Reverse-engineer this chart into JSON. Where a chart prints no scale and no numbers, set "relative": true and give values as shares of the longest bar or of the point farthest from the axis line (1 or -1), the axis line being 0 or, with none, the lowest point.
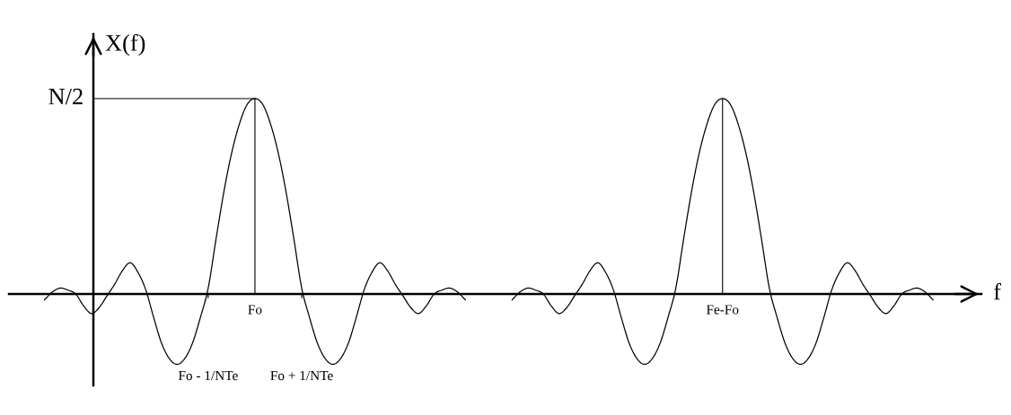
{
  "chart_data": {
    "type": "line",
    "relative": true,
    "xlabel": "f",
    "ylabel": "X(f)",
    "annotations": [
      "N/2"
    ],
    "categories": [
      null,
      null,
      null,
      null,
      null,
      null,
      null,
      null,
      null,
      null,
      null,
      null,
      null,
      null,
      null,
      null,
      null,
      null,
      null,
      null,
      null,
      "Fo - 1/NTe",
      null,
      null,
      null,
      null,
      null,
      "Fo",
      null,
      null,
      null,
      null,
      null,
      "Fo + 1/NTe",
      null,
      null,
      null,
      null,
      null,
      null,
      null,
      null,
      null,
      null,
      null,
      null,
      null,
      null,
      null,
      null,
      null,
      null,
      null,
      null,
      null,
      null,
      null,
      null,
      null,
      null,
      null,
      null,
      null,
      null,
      null,
      null,
      null,
      null,
      null,
      null,
      null,
      null,
      null,
      null,
      null,
      null,
      null,
      null,
      null,
      null,
      null,
      null,
      null,
      null,
      null,
      null,
      null,
      "Fe-Fo",
      null,
      null,
      null,
      null,
      null,
      null,
      null,
      null,
      null,
      null,
      null,
      null,
      null,
      null,
      null,
      null,
      null,
      null,
      null,
      null,
      null,
      null,
      null,
      null,
      null,
      null,
      null
    ],
    "series": [
      {
        "color": "#000000",
        "values": [
          -0.03,
          0.01,
          0.03,
          0.02,
          0.0,
          -0.06,
          -0.1,
          -0.07,
          -0.01,
          0.05,
          0.12,
          0.16,
          0.11,
          0.02,
          -0.12,
          -0.25,
          -0.33,
          -0.36,
          -0.33,
          -0.25,
          -0.12,
          0.03,
          0.28,
          0.52,
          0.72,
          0.87,
          0.97,
          1,
          0.97,
          0.87,
          0.72,
          0.52,
          0.28,
          0.03,
          -0.12,
          -0.25,
          -0.33,
          -0.36,
          -0.33,
          -0.25,
          -0.12,
          0.02,
          0.11,
          0.16,
          0.12,
          0.05,
          -0.01,
          -0.07,
          -0.1,
          -0.06,
          0.0,
          0.02,
          0.03,
          0.01,
          -0.03,
          null,
          null,
          null,
          null,
          null,
          null,
          null,
          null,
          null,
          null,
          null,
          null,
          null,
          null,
          null,
          null,
          null,
          null,
          null,
          null,
          null,
          null,
          null,
          null,
          null,
          null,
          null,
          null,
          null,
          null,
          null,
          null,
          null,
          null,
          null,
          null,
          null,
          null,
          null,
          null,
          null,
          null,
          null,
          null,
          null,
          null,
          null,
          null,
          null,
          null,
          null,
          null,
          null,
          null,
          null,
          null,
          null,
          null,
          null,
          null
        ]
      },
      {
        "color": "#000000",
        "values": [
          null,
          null,
          null,
          null,
          null,
          null,
          null,
          null,
          null,
          null,
          null,
          null,
          null,
          null,
          null,
          null,
          null,
          null,
          null,
          null,
          null,
          null,
          null,
          null,
          null,
          null,
          null,
          null,
          null,
          null,
          null,
          null,
          null,
          null,
          null,
          null,
          null,
          null,
          null,
          null,
          null,
          null,
          null,
          null,
          null,
          null,
          null,
          null,
          null,
          null,
          null,
          null,
          null,
          null,
          null,
          null,
          null,
          null,
          null,
          null,
          -0.03,
          0.01,
          0.03,
          0.02,
          0.0,
          -0.06,
          -0.1,
          -0.07,
          -0.01,
          0.05,
          0.12,
          0.16,
          0.11,
          0.02,
          -0.12,
          -0.25,
          -0.33,
          -0.36,
          -0.33,
          -0.25,
          -0.12,
          0.03,
          0.28,
          0.52,
          0.72,
          0.87,
          0.97,
          1,
          0.97,
          0.87,
          0.72,
          0.52,
          0.28,
          0.03,
          -0.12,
          -0.25,
          -0.33,
          -0.36,
          -0.33,
          -0.25,
          -0.12,
          0.02,
          0.11,
          0.16,
          0.12,
          0.05,
          -0.01,
          -0.07,
          -0.1,
          -0.06,
          0.0,
          0.02,
          0.03,
          0.01,
          -0.03
        ]
      }
    ]
  }
}
